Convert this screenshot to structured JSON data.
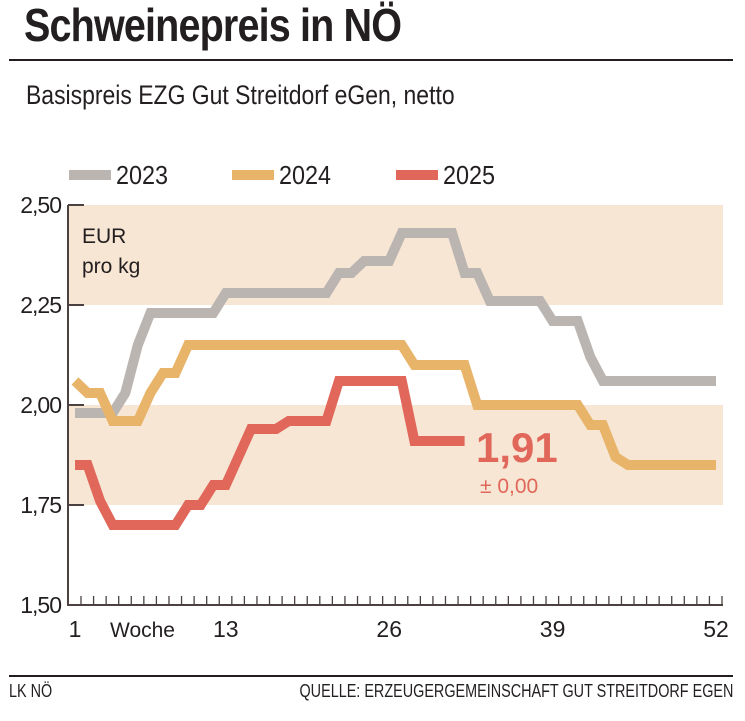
{
  "header": {
    "title": "Schweinepreis in NÖ",
    "subtitle": "Basispreis EZG Gut Streitdorf eGen, netto"
  },
  "footer": {
    "left": "LK NÖ",
    "right": "QUELLE: ERZEUGERGEMEINSCHAFT GUT STREITDORF EGEN"
  },
  "colors": {
    "2023": "#bbb5b2",
    "2024": "#e8b46a",
    "2025": "#e0675a",
    "band": "#f7e6d4",
    "axis": "#4a4140",
    "text": "#231f20"
  },
  "chart_data": {
    "type": "line",
    "title": "Schweinepreis in NÖ",
    "subtitle": "Basispreis EZG Gut Streitdorf eGen, netto",
    "unit_label": [
      "EUR",
      "pro kg"
    ],
    "xlabel": "Woche",
    "ylabel": "EUR pro kg",
    "xlim": [
      1,
      52
    ],
    "ylim": [
      1.5,
      2.5
    ],
    "x_ticks": [
      1,
      13,
      26,
      39,
      52
    ],
    "x_tick_labels": [
      "1",
      "13",
      "26",
      "39",
      "52"
    ],
    "y_ticks": [
      1.5,
      1.75,
      2.0,
      2.25,
      2.5
    ],
    "y_tick_labels": [
      "1,50",
      "1,75",
      "2,00",
      "2,25",
      "2,50"
    ],
    "bands": [
      [
        1.75,
        2.0
      ],
      [
        2.25,
        2.5
      ]
    ],
    "legend": [
      "2023",
      "2024",
      "2025"
    ],
    "legend_position": "top",
    "series": [
      {
        "name": "2023",
        "weeks": [
          1,
          2,
          3,
          4,
          5,
          6,
          7,
          8,
          9,
          10,
          11,
          12,
          13,
          14,
          15,
          16,
          17,
          18,
          19,
          20,
          21,
          22,
          23,
          24,
          25,
          26,
          27,
          28,
          29,
          30,
          31,
          32,
          33,
          34,
          35,
          36,
          37,
          38,
          39,
          40,
          41,
          42,
          43,
          44,
          45,
          46,
          47,
          48,
          49,
          50,
          51,
          52
        ],
        "values": [
          1.98,
          1.98,
          1.98,
          1.98,
          2.03,
          2.15,
          2.23,
          2.23,
          2.23,
          2.23,
          2.23,
          2.23,
          2.28,
          2.28,
          2.28,
          2.28,
          2.28,
          2.28,
          2.28,
          2.28,
          2.28,
          2.33,
          2.33,
          2.36,
          2.36,
          2.36,
          2.43,
          2.43,
          2.43,
          2.43,
          2.43,
          2.33,
          2.33,
          2.26,
          2.26,
          2.26,
          2.26,
          2.26,
          2.21,
          2.21,
          2.21,
          2.12,
          2.06,
          2.06,
          2.06,
          2.06,
          2.06,
          2.06,
          2.06,
          2.06,
          2.06,
          2.06
        ]
      },
      {
        "name": "2024",
        "weeks": [
          1,
          2,
          3,
          4,
          5,
          6,
          7,
          8,
          9,
          10,
          11,
          12,
          13,
          14,
          15,
          16,
          17,
          18,
          19,
          20,
          21,
          22,
          23,
          24,
          25,
          26,
          27,
          28,
          29,
          30,
          31,
          32,
          33,
          34,
          35,
          36,
          37,
          38,
          39,
          40,
          41,
          42,
          43,
          44,
          45,
          46,
          47,
          48,
          49,
          50,
          51,
          52
        ],
        "values": [
          2.06,
          2.03,
          2.03,
          1.96,
          1.96,
          1.96,
          2.03,
          2.08,
          2.08,
          2.15,
          2.15,
          2.15,
          2.15,
          2.15,
          2.15,
          2.15,
          2.15,
          2.15,
          2.15,
          2.15,
          2.15,
          2.15,
          2.15,
          2.15,
          2.15,
          2.15,
          2.15,
          2.1,
          2.1,
          2.1,
          2.1,
          2.1,
          2.0,
          2.0,
          2.0,
          2.0,
          2.0,
          2.0,
          2.0,
          2.0,
          2.0,
          1.95,
          1.95,
          1.87,
          1.85,
          1.85,
          1.85,
          1.85,
          1.85,
          1.85,
          1.85,
          1.85
        ]
      },
      {
        "name": "2025",
        "weeks": [
          1,
          2,
          3,
          4,
          5,
          6,
          7,
          8,
          9,
          10,
          11,
          12,
          13,
          14,
          15,
          16,
          17,
          18,
          19,
          20,
          21,
          22,
          23,
          24,
          25,
          26,
          27,
          28,
          29,
          30,
          31,
          32
        ],
        "values": [
          1.85,
          1.85,
          1.76,
          1.7,
          1.7,
          1.7,
          1.7,
          1.7,
          1.7,
          1.75,
          1.75,
          1.8,
          1.8,
          1.87,
          1.94,
          1.94,
          1.94,
          1.96,
          1.96,
          1.96,
          1.96,
          2.06,
          2.06,
          2.06,
          2.06,
          2.06,
          2.06,
          1.91,
          1.91,
          1.91,
          1.91,
          1.91
        ]
      }
    ],
    "annotations": [
      {
        "text": "1,91",
        "series": "2025",
        "role": "current-value"
      },
      {
        "text": "± 0,00",
        "series": "2025",
        "role": "change"
      }
    ]
  }
}
